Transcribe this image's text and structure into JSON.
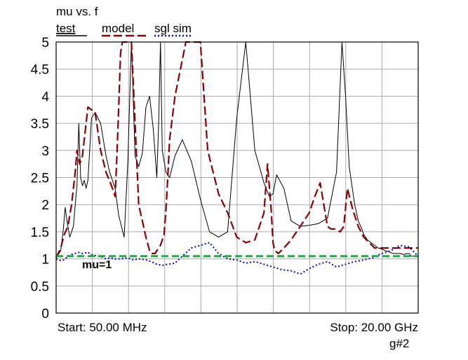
{
  "chart_data": {
    "type": "line",
    "title": "mu vs. f",
    "xlabel": "",
    "ylabel": "",
    "ylim": [
      0,
      5
    ],
    "yticks": [
      {
        "value": 0,
        "label": "0"
      },
      {
        "value": 0.5,
        "label": "0.5"
      },
      {
        "value": 1,
        "label": "1"
      },
      {
        "value": 1.5,
        "label": "1.5"
      },
      {
        "value": 2,
        "label": "2"
      },
      {
        "value": 2.5,
        "label": "2.5"
      },
      {
        "value": 3,
        "label": "3"
      },
      {
        "value": 3.5,
        "label": "3.5"
      },
      {
        "value": 4,
        "label": "4"
      },
      {
        "value": 4.5,
        "label": "4.5"
      },
      {
        "value": 5,
        "label": "5"
      }
    ],
    "x_range_ghz": [
      0.05,
      20.0
    ],
    "start_label": "Start: 50.00 MHz",
    "stop_label": "Stop: 20.00 GHz",
    "grid": true,
    "legend": [
      "test",
      "model",
      "sgl sim"
    ],
    "series": [
      {
        "name": "test",
        "color": "#000000",
        "style": "solid",
        "x": [
          0.05,
          0.3,
          0.45,
          0.55,
          0.65,
          0.8,
          1.0,
          1.1,
          1.2,
          1.3,
          1.4,
          1.5,
          1.6,
          1.7,
          1.8,
          1.9,
          2.0,
          2.2,
          2.5,
          2.8,
          3.0,
          3.3,
          3.5,
          3.8,
          4.0,
          4.2,
          4.4,
          4.6,
          4.8,
          5.0,
          5.2,
          5.4,
          5.6,
          5.7,
          5.8,
          5.9,
          6.1,
          6.3,
          6.6,
          7.0,
          7.5,
          8.0,
          8.5,
          9.0,
          9.5,
          10.0,
          10.5,
          11.0,
          11.5,
          11.8,
          12.0,
          12.2,
          12.6,
          13.0,
          13.5,
          14.0,
          14.5,
          15.0,
          15.5,
          15.8,
          16.0,
          16.2,
          16.5,
          16.7,
          16.9,
          17.0,
          17.2,
          17.4,
          17.6,
          17.8,
          18.0,
          18.2,
          18.4,
          18.6,
          18.8,
          19.0,
          19.2,
          19.4,
          19.5,
          19.6,
          19.8,
          20.0
        ],
        "y": [
          1.02,
          1.15,
          1.55,
          1.95,
          1.7,
          1.4,
          1.6,
          2.0,
          2.35,
          3.5,
          2.5,
          2.35,
          2.45,
          2.3,
          2.45,
          3.0,
          3.6,
          3.7,
          3.5,
          2.9,
          2.6,
          2.3,
          1.8,
          1.4,
          2.8,
          5.0,
          2.9,
          2.7,
          2.95,
          3.8,
          4.0,
          3.4,
          2.5,
          3.5,
          5.0,
          3.0,
          2.6,
          2.5,
          2.9,
          3.2,
          2.8,
          2.1,
          1.5,
          1.4,
          1.5,
          3.6,
          5.0,
          3.0,
          2.4,
          2.15,
          2.2,
          2.55,
          2.3,
          1.7,
          1.6,
          1.62,
          1.65,
          1.75,
          2.6,
          5.0,
          4.0,
          2.7,
          2.0,
          1.7,
          1.55,
          1.45,
          1.35,
          1.3,
          1.25,
          1.2,
          1.18,
          1.15,
          1.13,
          1.1,
          1.1,
          1.1,
          1.08,
          1.1,
          1.1,
          1.05,
          1.05,
          1.05
        ]
      },
      {
        "name": "model",
        "color": "#8b0000",
        "style": "long-dash",
        "x": [
          0.05,
          0.3,
          0.5,
          0.7,
          0.9,
          1.1,
          1.2,
          1.35,
          1.5,
          1.8,
          2.2,
          2.5,
          2.8,
          3.1,
          3.3,
          3.4,
          3.5,
          3.6,
          3.7,
          3.9,
          4.2,
          4.6,
          5.0,
          5.2,
          5.3,
          5.5,
          5.6,
          5.8,
          6.0,
          6.1,
          6.2,
          6.3,
          6.6,
          7.2,
          7.6,
          8.0,
          8.4,
          9.0,
          9.5,
          10.0,
          10.5,
          11.0,
          11.5,
          11.7,
          11.9,
          12.0,
          12.1,
          12.3,
          12.6,
          13.0,
          13.5,
          14.0,
          14.3,
          14.6,
          14.8,
          15.0,
          15.2,
          15.4,
          15.7,
          15.9,
          16.1,
          16.4,
          16.7,
          17.0,
          17.3,
          17.6,
          17.9,
          18.2,
          18.5,
          18.8,
          19.1,
          19.4,
          19.7,
          20.0
        ],
        "y": [
          1.02,
          1.2,
          1.45,
          1.6,
          2.0,
          2.6,
          3.0,
          2.75,
          2.9,
          3.8,
          3.7,
          3.0,
          2.6,
          2.35,
          2.15,
          2.9,
          3.8,
          4.8,
          5.0,
          5.0,
          5.0,
          2.0,
          1.4,
          1.15,
          1.1,
          1.1,
          1.15,
          1.25,
          1.45,
          1.9,
          2.5,
          3.2,
          4.0,
          5.0,
          5.0,
          5.0,
          3.0,
          2.2,
          1.85,
          1.4,
          1.3,
          1.35,
          1.85,
          2.75,
          1.9,
          1.3,
          1.15,
          1.1,
          1.2,
          1.35,
          1.6,
          1.85,
          2.15,
          2.4,
          2.0,
          1.6,
          1.55,
          1.55,
          1.5,
          1.6,
          2.3,
          1.9,
          1.6,
          1.4,
          1.3,
          1.2,
          1.2,
          1.2,
          1.2,
          1.2,
          1.2,
          1.2,
          1.2,
          1.2
        ]
      },
      {
        "name": "sgl sim",
        "color": "#0000cc",
        "style": "dotted",
        "x": [
          0.05,
          0.3,
          0.5,
          0.7,
          0.9,
          1.1,
          1.3,
          1.5,
          1.8,
          2.0,
          2.3,
          2.6,
          2.8,
          3.0,
          3.3,
          3.6,
          4.0,
          4.3,
          4.6,
          5.0,
          5.3,
          5.6,
          5.9,
          6.2,
          6.6,
          7.0,
          7.5,
          8.0,
          8.5,
          9.0,
          9.5,
          10.0,
          10.5,
          11.0,
          11.5,
          12.0,
          12.5,
          13.0,
          13.5,
          14.0,
          14.5,
          15.0,
          15.5,
          16.0,
          16.5,
          17.0,
          17.5,
          18.0,
          18.5,
          19.0,
          19.5,
          20.0
        ],
        "y": [
          1.0,
          0.97,
          0.98,
          1.05,
          1.08,
          1.1,
          1.12,
          1.1,
          1.12,
          1.08,
          1.05,
          1.03,
          1.0,
          1.02,
          1.0,
          1.0,
          1.02,
          0.98,
          1.0,
          0.98,
          0.95,
          0.9,
          0.88,
          0.9,
          0.92,
          1.05,
          1.2,
          1.25,
          1.3,
          1.1,
          1.0,
          0.98,
          0.92,
          0.95,
          0.9,
          0.85,
          0.8,
          0.78,
          0.72,
          0.82,
          0.9,
          0.95,
          0.85,
          0.9,
          0.95,
          0.98,
          1.02,
          1.1,
          1.15,
          1.25,
          1.22,
          1.05
        ]
      },
      {
        "name": "mu=1",
        "color": "#22aa44",
        "style": "dash",
        "x": [
          0.05,
          20.0
        ],
        "y": [
          1.05,
          1.05
        ]
      }
    ],
    "annotations": [
      {
        "text": "mu=1"
      },
      {
        "text": "g#2"
      }
    ]
  }
}
